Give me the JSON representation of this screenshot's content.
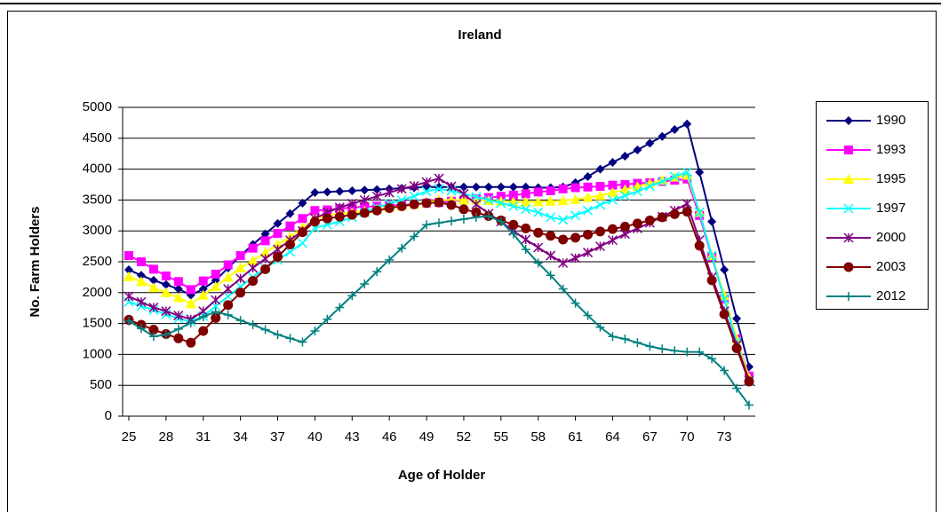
{
  "chart_data": {
    "type": "line",
    "title": "Ireland",
    "x_label": "Age of Holder",
    "y_label": "No. Farm Holders",
    "x": [
      25,
      26,
      27,
      28,
      29,
      30,
      31,
      32,
      33,
      34,
      35,
      36,
      37,
      38,
      39,
      40,
      41,
      42,
      43,
      44,
      45,
      46,
      47,
      48,
      49,
      50,
      51,
      52,
      53,
      54,
      55,
      56,
      57,
      58,
      59,
      60,
      61,
      62,
      63,
      64,
      65,
      66,
      67,
      68,
      69,
      70,
      71,
      72,
      73,
      74,
      75
    ],
    "xlim": [
      24.5,
      75.5
    ],
    "xticks": [
      25,
      28,
      31,
      34,
      37,
      40,
      43,
      46,
      49,
      52,
      55,
      58,
      61,
      64,
      67,
      70,
      73
    ],
    "ylim": [
      0,
      5000
    ],
    "yticks": [
      0,
      500,
      1000,
      1500,
      2000,
      2500,
      3000,
      3500,
      4000,
      4500,
      5000
    ],
    "grid": true,
    "legend": "right",
    "series": [
      {
        "name": "1990",
        "color": "#000080",
        "marker": "diamond",
        "values": [
          2370,
          2280,
          2200,
          2130,
          2060,
          1960,
          2060,
          2200,
          2400,
          2600,
          2780,
          2950,
          3120,
          3280,
          3450,
          3620,
          3630,
          3640,
          3650,
          3660,
          3670,
          3680,
          3690,
          3700,
          3710,
          3710,
          3710,
          3710,
          3710,
          3710,
          3710,
          3710,
          3710,
          3700,
          3700,
          3710,
          3780,
          3880,
          4000,
          4110,
          4210,
          4310,
          4420,
          4530,
          4640,
          4730,
          3950,
          3150,
          2370,
          1580,
          800
        ]
      },
      {
        "name": "1993",
        "color": "#ff00ff",
        "marker": "square",
        "values": [
          2600,
          2500,
          2380,
          2270,
          2180,
          2050,
          2190,
          2300,
          2450,
          2600,
          2720,
          2840,
          2960,
          3080,
          3200,
          3330,
          3340,
          3360,
          3380,
          3390,
          3400,
          3410,
          3420,
          3430,
          3450,
          3460,
          3480,
          3500,
          3520,
          3540,
          3560,
          3580,
          3600,
          3630,
          3650,
          3680,
          3700,
          3710,
          3720,
          3740,
          3750,
          3770,
          3780,
          3800,
          3820,
          3840,
          3250,
          2580,
          1900,
          1250,
          650
        ]
      },
      {
        "name": "1995",
        "color": "#ffff00",
        "marker": "triangle",
        "values": [
          2260,
          2180,
          2080,
          2000,
          1920,
          1820,
          1960,
          2100,
          2250,
          2400,
          2520,
          2650,
          2780,
          2900,
          3050,
          3200,
          3250,
          3280,
          3300,
          3320,
          3350,
          3380,
          3400,
          3430,
          3460,
          3500,
          3500,
          3500,
          3500,
          3490,
          3480,
          3470,
          3470,
          3470,
          3480,
          3490,
          3510,
          3540,
          3570,
          3620,
          3670,
          3720,
          3770,
          3820,
          3870,
          3900,
          3300,
          2600,
          1950,
          1250,
          620
        ]
      },
      {
        "name": "1997",
        "color": "#00ffff",
        "marker": "x",
        "values": [
          1850,
          1780,
          1720,
          1650,
          1580,
          1530,
          1620,
          1780,
          1940,
          2100,
          2250,
          2400,
          2530,
          2660,
          2800,
          3050,
          3100,
          3150,
          3220,
          3300,
          3380,
          3440,
          3500,
          3560,
          3640,
          3680,
          3650,
          3600,
          3550,
          3500,
          3450,
          3400,
          3350,
          3300,
          3220,
          3180,
          3250,
          3330,
          3420,
          3500,
          3570,
          3640,
          3720,
          3800,
          3880,
          3950,
          3300,
          2600,
          1900,
          1200,
          560
        ]
      },
      {
        "name": "2000",
        "color": "#800080",
        "marker": "star",
        "values": [
          1940,
          1850,
          1760,
          1700,
          1630,
          1570,
          1700,
          1880,
          2060,
          2230,
          2400,
          2550,
          2700,
          2850,
          3000,
          3200,
          3300,
          3380,
          3440,
          3500,
          3560,
          3620,
          3680,
          3730,
          3790,
          3850,
          3720,
          3600,
          3430,
          3280,
          3150,
          3000,
          2860,
          2730,
          2600,
          2480,
          2560,
          2650,
          2750,
          2850,
          2950,
          3040,
          3130,
          3230,
          3330,
          3440,
          2850,
          2250,
          1700,
          1150,
          580
        ]
      },
      {
        "name": "2003",
        "color": "#800000",
        "marker": "circle",
        "values": [
          1560,
          1480,
          1400,
          1330,
          1260,
          1190,
          1380,
          1590,
          1800,
          2000,
          2190,
          2380,
          2580,
          2780,
          2980,
          3150,
          3200,
          3230,
          3260,
          3290,
          3330,
          3370,
          3400,
          3430,
          3450,
          3460,
          3420,
          3350,
          3300,
          3240,
          3170,
          3100,
          3040,
          2970,
          2920,
          2860,
          2890,
          2940,
          2990,
          3030,
          3070,
          3120,
          3170,
          3220,
          3270,
          3310,
          2760,
          2200,
          1650,
          1100,
          560
        ]
      },
      {
        "name": "2012",
        "color": "#008080",
        "marker": "plus",
        "values": [
          1540,
          1420,
          1290,
          1320,
          1410,
          1510,
          1610,
          1690,
          1640,
          1550,
          1480,
          1400,
          1320,
          1260,
          1200,
          1380,
          1570,
          1760,
          1950,
          2140,
          2340,
          2530,
          2720,
          2910,
          3100,
          3130,
          3160,
          3190,
          3220,
          3240,
          3150,
          2950,
          2700,
          2480,
          2280,
          2060,
          1830,
          1630,
          1440,
          1290,
          1250,
          1190,
          1130,
          1090,
          1060,
          1040,
          1040,
          930,
          740,
          450,
          180
        ]
      }
    ]
  }
}
